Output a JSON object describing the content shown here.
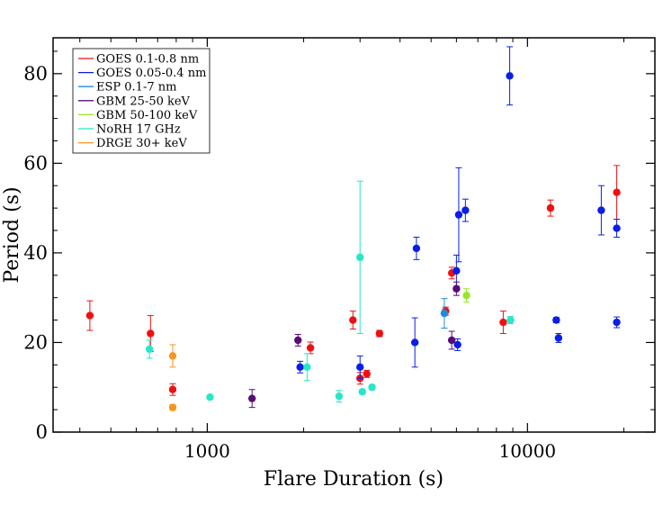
{
  "chart_data": {
    "type": "scatter",
    "xlabel": "Flare Duration (s)",
    "ylabel": "Period (s)",
    "xscale": "log",
    "xlim": [
      330,
      25000
    ],
    "ylim": [
      0,
      88
    ],
    "x_ticks": [
      1000,
      10000
    ],
    "x_tick_labels": [
      "1000",
      "10000"
    ],
    "y_ticks": [
      0,
      20,
      40,
      60,
      80
    ],
    "y_tick_labels": [
      "0",
      "20",
      "40",
      "60",
      "80"
    ],
    "legend_position": "top-left",
    "grid": false,
    "error_bars": true,
    "series": [
      {
        "name": "GOES 0.1-0.8 nm",
        "color": "#ee1111",
        "points": [
          {
            "x": 430,
            "y": 26,
            "err": 3.3
          },
          {
            "x": 665,
            "y": 22,
            "err": 4
          },
          {
            "x": 780,
            "y": 9.5,
            "err": 1.3
          },
          {
            "x": 2100,
            "y": 18.8,
            "err": 1.3
          },
          {
            "x": 2850,
            "y": 25,
            "err": 2
          },
          {
            "x": 3000,
            "y": 12,
            "err": 1.3
          },
          {
            "x": 3150,
            "y": 13,
            "err": 0.8
          },
          {
            "x": 3450,
            "y": 22,
            "err": 0.7
          },
          {
            "x": 5550,
            "y": 27,
            "err": 0.9
          },
          {
            "x": 5800,
            "y": 35.5,
            "err": 1.3
          },
          {
            "x": 8400,
            "y": 24.5,
            "err": 2.5
          },
          {
            "x": 11800,
            "y": 50,
            "err": 1.8
          },
          {
            "x": 19000,
            "y": 53.5,
            "err": 6
          }
        ]
      },
      {
        "name": "GOES 0.05-0.4 nm",
        "color": "#0a1ee6",
        "points": [
          {
            "x": 1950,
            "y": 14.5,
            "err": 1.3
          },
          {
            "x": 3000,
            "y": 14.5,
            "err": 2.5
          },
          {
            "x": 4450,
            "y": 20,
            "err": 5.5
          },
          {
            "x": 4500,
            "y": 41,
            "err": 2.5
          },
          {
            "x": 6000,
            "y": 36,
            "err": 3.5
          },
          {
            "x": 6050,
            "y": 19.5,
            "err": 1.3
          },
          {
            "x": 6100,
            "y": 48.5,
            "err": 10.5
          },
          {
            "x": 6400,
            "y": 49.5,
            "err": 2.5
          },
          {
            "x": 8800,
            "y": 79.5,
            "err": 6.5
          },
          {
            "x": 12300,
            "y": 25,
            "err": 0.6
          },
          {
            "x": 12500,
            "y": 21,
            "err": 1
          },
          {
            "x": 17000,
            "y": 49.5,
            "err": 5.5
          },
          {
            "x": 19000,
            "y": 45.5,
            "err": 2
          },
          {
            "x": 19000,
            "y": 24.5,
            "err": 1.2
          }
        ]
      },
      {
        "name": "ESP 0.1-7 nm",
        "color": "#1e8cdc",
        "points": [
          {
            "x": 5500,
            "y": 26.5,
            "err": 3.3
          }
        ]
      },
      {
        "name": "GBM 25-50 keV",
        "color": "#5a0a78",
        "points": [
          {
            "x": 1380,
            "y": 7.5,
            "err": 2
          },
          {
            "x": 1920,
            "y": 20.5,
            "err": 1.3
          },
          {
            "x": 5800,
            "y": 20.5,
            "err": 2
          },
          {
            "x": 6000,
            "y": 32,
            "err": 1.5
          }
        ]
      },
      {
        "name": "GBM 50-100 keV",
        "color": "#96e628",
        "points": [
          {
            "x": 6450,
            "y": 30.5,
            "err": 1.5
          }
        ]
      },
      {
        "name": "NoRH 17 GHz",
        "color": "#28e6c8",
        "points": [
          {
            "x": 660,
            "y": 18.5,
            "err": 2
          },
          {
            "x": 1020,
            "y": 7.8,
            "err": 0.4
          },
          {
            "x": 2050,
            "y": 14.5,
            "err": 3
          },
          {
            "x": 2580,
            "y": 8,
            "err": 1.3
          },
          {
            "x": 3000,
            "y": 39,
            "err": 17
          },
          {
            "x": 3050,
            "y": 9,
            "err": 0.5
          },
          {
            "x": 3270,
            "y": 10,
            "err": 0.5
          },
          {
            "x": 8850,
            "y": 25,
            "err": 0.8
          }
        ]
      },
      {
        "name": "DRGE 30+ keV",
        "color": "#f5961e",
        "points": [
          {
            "x": 780,
            "y": 17,
            "err": 2.5
          },
          {
            "x": 780,
            "y": 5.5,
            "err": 0.6
          }
        ]
      }
    ]
  }
}
